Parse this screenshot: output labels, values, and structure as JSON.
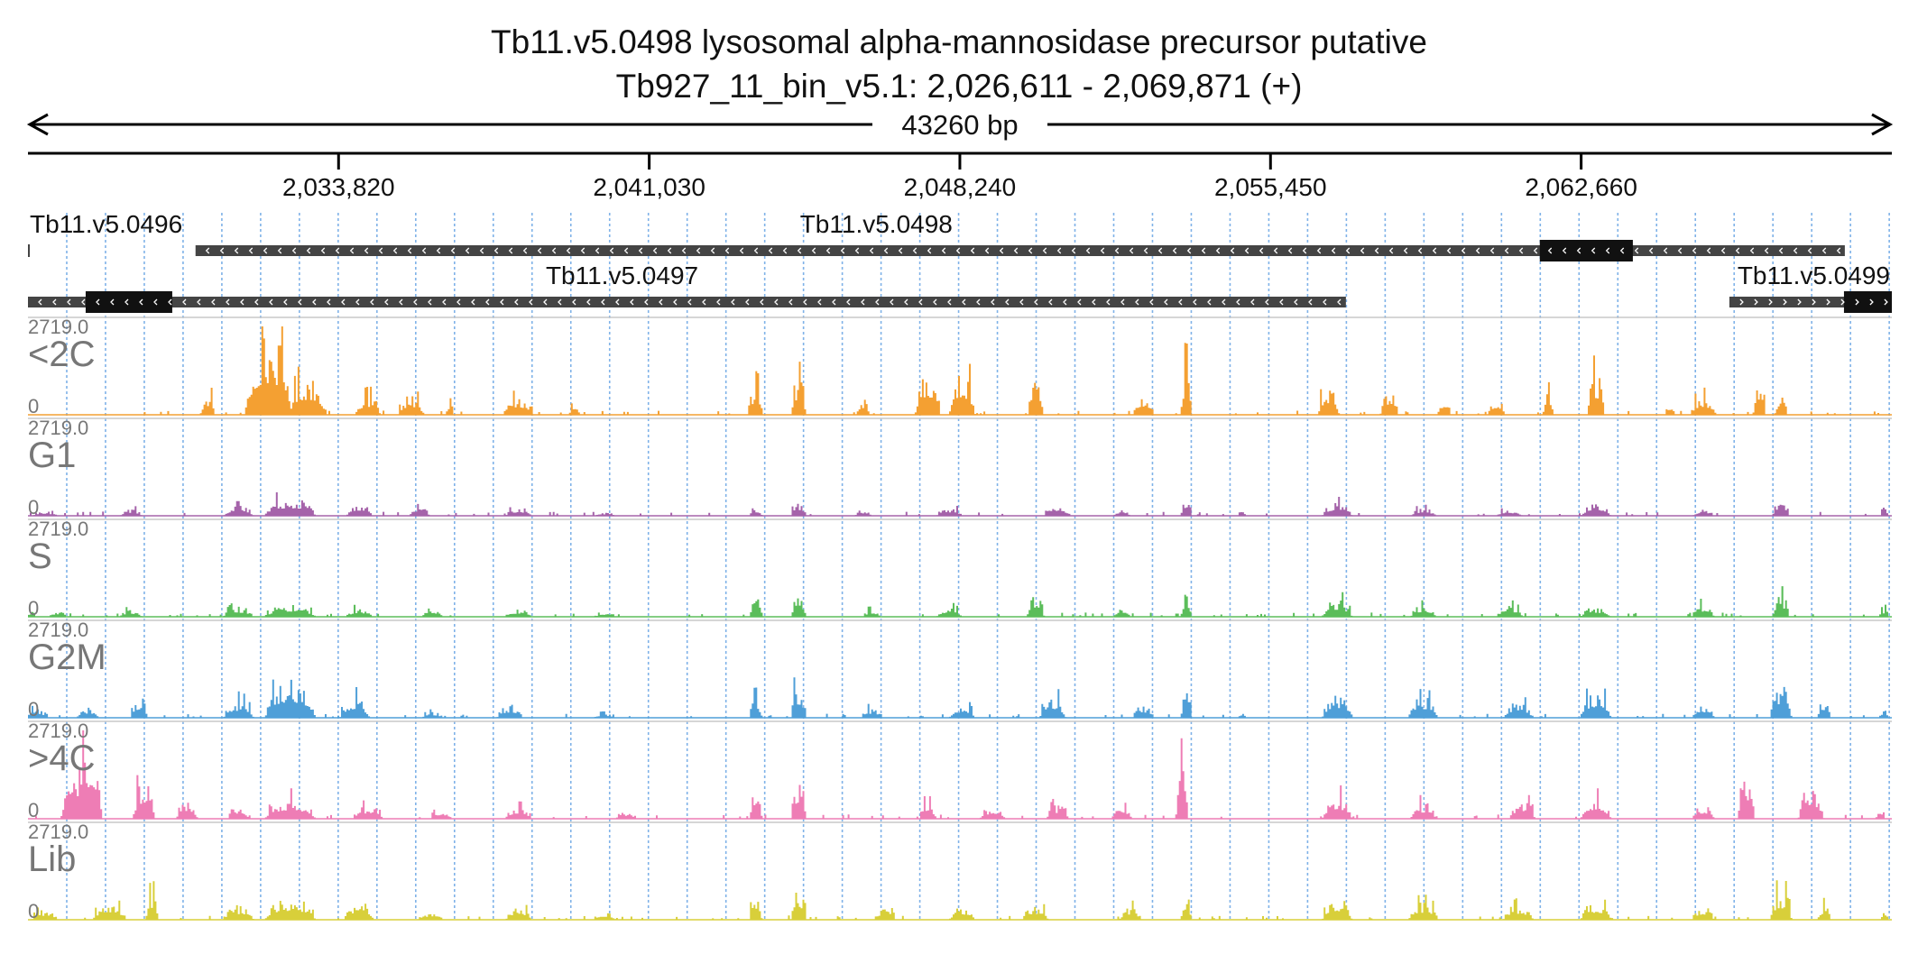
{
  "chart_data": {
    "type": "area",
    "title": "Tb11.v5.0498  lysosomal alpha-mannosidase precursor  putative",
    "subtitle": "Tb927_11_bin_v5.1: 2,026,611 - 2,069,871 (+)",
    "span_label": "43260 bp",
    "x_range": [
      2026611,
      2069871
    ],
    "x_ticks": [
      2033820,
      2041030,
      2048240,
      2055450,
      2062660
    ],
    "x_tick_labels": [
      "2,033,820",
      "2,041,030",
      "2,048,240",
      "2,055,450",
      "2,062,660"
    ],
    "genes": [
      {
        "name": "Tb11.v5.0496",
        "start": 2026611,
        "end": 2026640,
        "strand": "-",
        "cds": []
      },
      {
        "name": "Tb11.v5.0498",
        "start": 2030500,
        "end": 2068780,
        "strand": "-",
        "cds": [
          [
            2061700,
            2063860
          ]
        ]
      },
      {
        "name": "Tb11.v5.0497",
        "start": 2026611,
        "end": 2057200,
        "strand": "-",
        "cds": [
          [
            2027950,
            2029960
          ]
        ]
      },
      {
        "name": "Tb11.v5.0499",
        "start": 2066100,
        "end": 2069871,
        "strand": "+",
        "cds": [
          [
            2068760,
            2069871
          ]
        ]
      }
    ],
    "y_range": [
      0,
      2719.0
    ],
    "y_max_label": "2719.0",
    "y_min_label": "0",
    "series": [
      {
        "name": "<2C",
        "color": "#f4a032",
        "regions": [
          {
            "c": 2032200,
            "w": 1100,
            "h": 2719
          },
          {
            "c": 2033100,
            "w": 900,
            "h": 1300
          },
          {
            "c": 2030800,
            "w": 300,
            "h": 750
          },
          {
            "c": 2034500,
            "w": 600,
            "h": 650
          },
          {
            "c": 2035500,
            "w": 600,
            "h": 650
          },
          {
            "c": 2038000,
            "w": 700,
            "h": 600
          },
          {
            "c": 2043500,
            "w": 350,
            "h": 1000
          },
          {
            "c": 2044500,
            "w": 350,
            "h": 1300
          },
          {
            "c": 2046000,
            "w": 300,
            "h": 550
          },
          {
            "c": 2047500,
            "w": 600,
            "h": 1500
          },
          {
            "c": 2048300,
            "w": 600,
            "h": 1450
          },
          {
            "c": 2050000,
            "w": 350,
            "h": 1350
          },
          {
            "c": 2052500,
            "w": 500,
            "h": 700
          },
          {
            "c": 2053500,
            "w": 250,
            "h": 1700
          },
          {
            "c": 2056800,
            "w": 500,
            "h": 1000
          },
          {
            "c": 2058200,
            "w": 400,
            "h": 900
          },
          {
            "c": 2059500,
            "w": 250,
            "h": 650
          },
          {
            "c": 2060700,
            "w": 400,
            "h": 550
          },
          {
            "c": 2061900,
            "w": 250,
            "h": 750
          },
          {
            "c": 2063000,
            "w": 400,
            "h": 1450
          },
          {
            "c": 2064700,
            "w": 200,
            "h": 400
          },
          {
            "c": 2065500,
            "w": 600,
            "h": 650
          },
          {
            "c": 2066800,
            "w": 300,
            "h": 1300
          },
          {
            "c": 2067300,
            "w": 300,
            "h": 650
          },
          {
            "c": 2036400,
            "w": 200,
            "h": 400
          },
          {
            "c": 2039300,
            "w": 250,
            "h": 320
          }
        ]
      },
      {
        "name": "G1",
        "color": "#a563aa",
        "regions": [
          {
            "c": 2027000,
            "w": 600,
            "h": 150
          },
          {
            "c": 2029000,
            "w": 500,
            "h": 250
          },
          {
            "c": 2031500,
            "w": 700,
            "h": 350
          },
          {
            "c": 2032700,
            "w": 1200,
            "h": 650
          },
          {
            "c": 2034300,
            "w": 600,
            "h": 450
          },
          {
            "c": 2035700,
            "w": 500,
            "h": 280
          },
          {
            "c": 2038000,
            "w": 600,
            "h": 280
          },
          {
            "c": 2040000,
            "w": 500,
            "h": 120
          },
          {
            "c": 2043500,
            "w": 300,
            "h": 300
          },
          {
            "c": 2044500,
            "w": 350,
            "h": 500
          },
          {
            "c": 2046000,
            "w": 400,
            "h": 200
          },
          {
            "c": 2048000,
            "w": 600,
            "h": 300
          },
          {
            "c": 2050500,
            "w": 600,
            "h": 380
          },
          {
            "c": 2052000,
            "w": 400,
            "h": 200
          },
          {
            "c": 2053500,
            "w": 250,
            "h": 550
          },
          {
            "c": 2054800,
            "w": 200,
            "h": 180
          },
          {
            "c": 2057000,
            "w": 700,
            "h": 450
          },
          {
            "c": 2059000,
            "w": 600,
            "h": 260
          },
          {
            "c": 2061000,
            "w": 600,
            "h": 220
          },
          {
            "c": 2063000,
            "w": 700,
            "h": 420
          },
          {
            "c": 2065500,
            "w": 500,
            "h": 220
          },
          {
            "c": 2067300,
            "w": 400,
            "h": 600
          },
          {
            "c": 2069700,
            "w": 200,
            "h": 300
          }
        ]
      },
      {
        "name": "S",
        "color": "#5bbd5a",
        "regions": [
          {
            "c": 2026700,
            "w": 200,
            "h": 200
          },
          {
            "c": 2027300,
            "w": 400,
            "h": 200
          },
          {
            "c": 2029000,
            "w": 500,
            "h": 250
          },
          {
            "c": 2031500,
            "w": 700,
            "h": 350
          },
          {
            "c": 2032700,
            "w": 1200,
            "h": 450
          },
          {
            "c": 2034300,
            "w": 600,
            "h": 300
          },
          {
            "c": 2036000,
            "w": 500,
            "h": 200
          },
          {
            "c": 2038000,
            "w": 600,
            "h": 260
          },
          {
            "c": 2040000,
            "w": 500,
            "h": 120
          },
          {
            "c": 2043500,
            "w": 300,
            "h": 650
          },
          {
            "c": 2044500,
            "w": 350,
            "h": 850
          },
          {
            "c": 2046200,
            "w": 400,
            "h": 250
          },
          {
            "c": 2048000,
            "w": 600,
            "h": 330
          },
          {
            "c": 2050000,
            "w": 400,
            "h": 800
          },
          {
            "c": 2052000,
            "w": 400,
            "h": 250
          },
          {
            "c": 2053500,
            "w": 250,
            "h": 800
          },
          {
            "c": 2057000,
            "w": 700,
            "h": 600
          },
          {
            "c": 2059000,
            "w": 600,
            "h": 400
          },
          {
            "c": 2061000,
            "w": 600,
            "h": 400
          },
          {
            "c": 2063000,
            "w": 700,
            "h": 330
          },
          {
            "c": 2065500,
            "w": 500,
            "h": 450
          },
          {
            "c": 2067300,
            "w": 400,
            "h": 750
          },
          {
            "c": 2069700,
            "w": 200,
            "h": 300
          }
        ]
      },
      {
        "name": "G2M",
        "color": "#4f9fd8",
        "regions": [
          {
            "c": 2026800,
            "w": 500,
            "h": 300
          },
          {
            "c": 2028000,
            "w": 500,
            "h": 350
          },
          {
            "c": 2029200,
            "w": 400,
            "h": 700
          },
          {
            "c": 2031500,
            "w": 700,
            "h": 600
          },
          {
            "c": 2032700,
            "w": 1200,
            "h": 1300
          },
          {
            "c": 2034200,
            "w": 700,
            "h": 700
          },
          {
            "c": 2036000,
            "w": 500,
            "h": 200
          },
          {
            "c": 2037800,
            "w": 600,
            "h": 450
          },
          {
            "c": 2040000,
            "w": 500,
            "h": 150
          },
          {
            "c": 2043500,
            "w": 300,
            "h": 700
          },
          {
            "c": 2044500,
            "w": 350,
            "h": 1150
          },
          {
            "c": 2046200,
            "w": 500,
            "h": 350
          },
          {
            "c": 2048300,
            "w": 600,
            "h": 450
          },
          {
            "c": 2050400,
            "w": 600,
            "h": 750
          },
          {
            "c": 2052500,
            "w": 500,
            "h": 450
          },
          {
            "c": 2053500,
            "w": 250,
            "h": 1150
          },
          {
            "c": 2054800,
            "w": 200,
            "h": 200
          },
          {
            "c": 2057000,
            "w": 700,
            "h": 850
          },
          {
            "c": 2059000,
            "w": 700,
            "h": 700
          },
          {
            "c": 2061200,
            "w": 700,
            "h": 550
          },
          {
            "c": 2063000,
            "w": 700,
            "h": 900
          },
          {
            "c": 2065500,
            "w": 500,
            "h": 450
          },
          {
            "c": 2067300,
            "w": 500,
            "h": 1200
          },
          {
            "c": 2068300,
            "w": 300,
            "h": 600
          },
          {
            "c": 2069700,
            "w": 200,
            "h": 300
          }
        ]
      },
      {
        "name": ">4C",
        "color": "#ee7db5",
        "regions": [
          {
            "c": 2028000,
            "w": 700,
            "h": 2719
          },
          {
            "c": 2027700,
            "w": 600,
            "h": 2000
          },
          {
            "c": 2029300,
            "w": 500,
            "h": 1300
          },
          {
            "c": 2030300,
            "w": 500,
            "h": 650
          },
          {
            "c": 2031500,
            "w": 500,
            "h": 450
          },
          {
            "c": 2032700,
            "w": 1200,
            "h": 700
          },
          {
            "c": 2034500,
            "w": 700,
            "h": 450
          },
          {
            "c": 2036200,
            "w": 500,
            "h": 300
          },
          {
            "c": 2038000,
            "w": 600,
            "h": 420
          },
          {
            "c": 2040500,
            "w": 500,
            "h": 250
          },
          {
            "c": 2043500,
            "w": 300,
            "h": 900
          },
          {
            "c": 2044500,
            "w": 350,
            "h": 1350
          },
          {
            "c": 2047500,
            "w": 400,
            "h": 550
          },
          {
            "c": 2049000,
            "w": 600,
            "h": 400
          },
          {
            "c": 2050500,
            "w": 500,
            "h": 480
          },
          {
            "c": 2052000,
            "w": 500,
            "h": 400
          },
          {
            "c": 2053400,
            "w": 300,
            "h": 1950
          },
          {
            "c": 2057000,
            "w": 700,
            "h": 800
          },
          {
            "c": 2059000,
            "w": 600,
            "h": 550
          },
          {
            "c": 2061300,
            "w": 600,
            "h": 650
          },
          {
            "c": 2063000,
            "w": 700,
            "h": 750
          },
          {
            "c": 2065500,
            "w": 500,
            "h": 450
          },
          {
            "c": 2066500,
            "w": 400,
            "h": 1600
          },
          {
            "c": 2068000,
            "w": 600,
            "h": 1100
          },
          {
            "c": 2069600,
            "w": 200,
            "h": 350
          }
        ]
      },
      {
        "name": "Lib",
        "color": "#d8cf3a",
        "regions": [
          {
            "c": 2027000,
            "w": 600,
            "h": 350
          },
          {
            "c": 2028500,
            "w": 800,
            "h": 550
          },
          {
            "c": 2029500,
            "w": 300,
            "h": 900
          },
          {
            "c": 2031500,
            "w": 700,
            "h": 500
          },
          {
            "c": 2032700,
            "w": 1200,
            "h": 750
          },
          {
            "c": 2034300,
            "w": 700,
            "h": 600
          },
          {
            "c": 2036000,
            "w": 500,
            "h": 300
          },
          {
            "c": 2038000,
            "w": 600,
            "h": 450
          },
          {
            "c": 2040000,
            "w": 500,
            "h": 250
          },
          {
            "c": 2043500,
            "w": 300,
            "h": 700
          },
          {
            "c": 2044500,
            "w": 350,
            "h": 1050
          },
          {
            "c": 2046500,
            "w": 500,
            "h": 400
          },
          {
            "c": 2048300,
            "w": 600,
            "h": 450
          },
          {
            "c": 2050000,
            "w": 600,
            "h": 500
          },
          {
            "c": 2052200,
            "w": 500,
            "h": 450
          },
          {
            "c": 2053500,
            "w": 250,
            "h": 800
          },
          {
            "c": 2057000,
            "w": 700,
            "h": 750
          },
          {
            "c": 2059000,
            "w": 700,
            "h": 600
          },
          {
            "c": 2061200,
            "w": 700,
            "h": 500
          },
          {
            "c": 2063000,
            "w": 700,
            "h": 600
          },
          {
            "c": 2065500,
            "w": 500,
            "h": 450
          },
          {
            "c": 2067300,
            "w": 500,
            "h": 1000
          },
          {
            "c": 2068300,
            "w": 300,
            "h": 500
          },
          {
            "c": 2069700,
            "w": 200,
            "h": 300
          }
        ]
      }
    ]
  }
}
